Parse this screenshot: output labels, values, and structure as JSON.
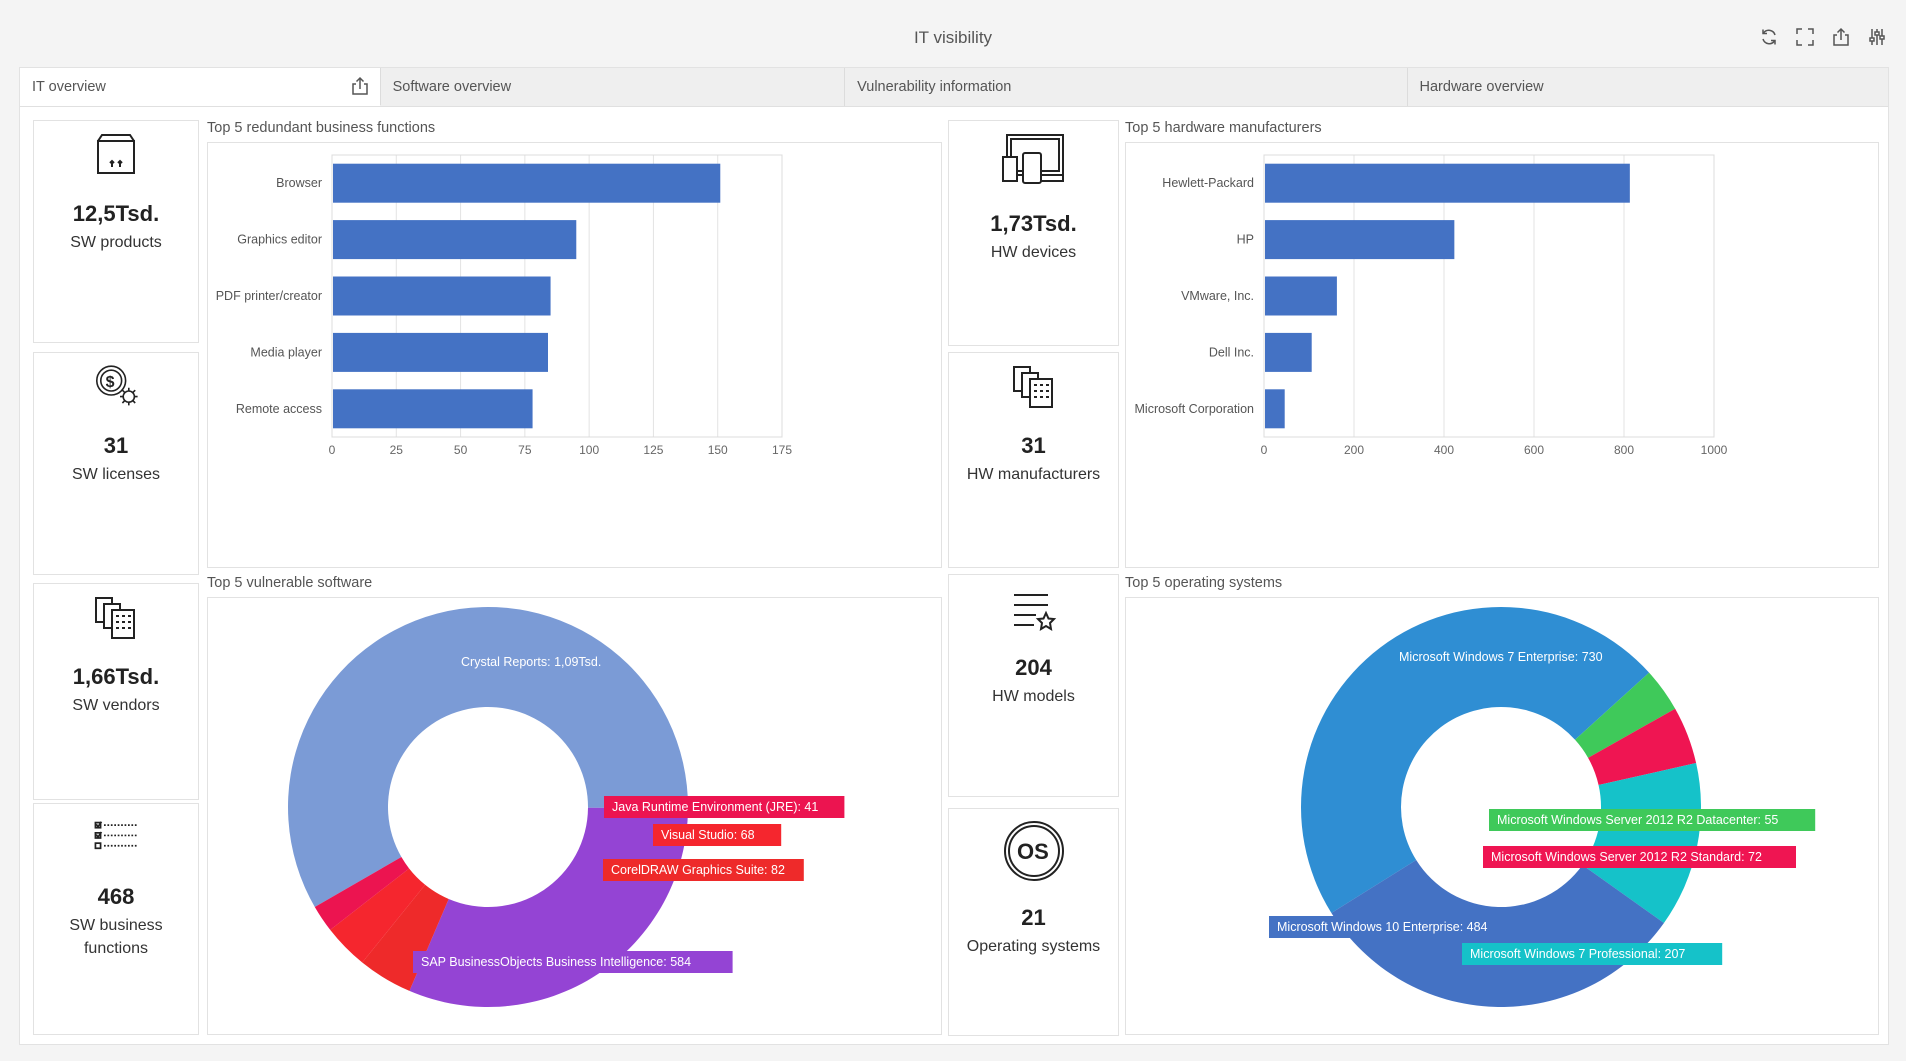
{
  "app": {
    "title": "IT visibility"
  },
  "toolbar": {
    "icons": [
      "refresh-icon",
      "fullscreen-icon",
      "share-icon",
      "settings-sliders-icon"
    ]
  },
  "tabs": [
    {
      "label": "IT overview",
      "active": true
    },
    {
      "label": "Software overview",
      "active": false
    },
    {
      "label": "Vulnerability information",
      "active": false
    },
    {
      "label": "Hardware overview",
      "active": false
    }
  ],
  "kpis": {
    "sw_products": {
      "value": "12,5Tsd.",
      "label": "SW products",
      "icon": "box-icon"
    },
    "sw_licenses": {
      "value": "31",
      "label": "SW licenses",
      "icon": "dollar-gear-icon"
    },
    "sw_vendors": {
      "value": "1,66Tsd.",
      "label": "SW vendors",
      "icon": "building-icon"
    },
    "sw_business_functions": {
      "value": "468",
      "label": "SW business functions",
      "icon": "checklist-icon"
    },
    "hw_devices": {
      "value": "1,73Tsd.",
      "label": "HW devices",
      "icon": "devices-icon"
    },
    "hw_manufacturers": {
      "value": "31",
      "label": "HW manufacturers",
      "icon": "building-icon"
    },
    "hw_models": {
      "value": "204",
      "label": "HW models",
      "icon": "list-star-icon"
    },
    "operating_systems": {
      "value": "21",
      "label": "Operating systems",
      "icon": "os-icon"
    }
  },
  "panels": {
    "redundant": {
      "title": "Top 5 redundant business functions"
    },
    "hw_manufacturers": {
      "title": "Top 5 hardware manufacturers"
    },
    "vulnerable": {
      "title": "Top 5 vulnerable software"
    },
    "os": {
      "title": "Top 5 operating systems"
    }
  },
  "chart_data": [
    {
      "type": "bar",
      "orientation": "horizontal",
      "title": "Top 5 redundant business functions",
      "categories": [
        "Browser",
        "Graphics editor",
        "PDF printer/creator",
        "Media player",
        "Remote access"
      ],
      "values": [
        151,
        95,
        85,
        84,
        78
      ],
      "xlim": [
        0,
        175
      ],
      "xticks": [
        0,
        25,
        50,
        75,
        100,
        125,
        150,
        175
      ],
      "grid": true,
      "color": "#4472c4"
    },
    {
      "type": "bar",
      "orientation": "horizontal",
      "title": "Top 5 hardware manufacturers",
      "categories": [
        "Hewlett-Packard",
        "HP",
        "VMware, Inc.",
        "Dell Inc.",
        "Microsoft Corporation"
      ],
      "values": [
        813,
        423,
        162,
        106,
        46
      ],
      "xlim": [
        0,
        1000
      ],
      "xticks": [
        0,
        200,
        400,
        600,
        800,
        1000
      ],
      "grid": true,
      "color": "#4472c4"
    },
    {
      "type": "pie",
      "donut": true,
      "title": "Top 5 vulnerable software",
      "slices": [
        {
          "label": "Crystal Reports: 1,09Tsd.",
          "value": 1090,
          "color": "#7b9bd6"
        },
        {
          "label": "SAP BusinessObjects Business Intelligence: 584",
          "value": 584,
          "color": "#9444d4"
        },
        {
          "label": "CorelDRAW Graphics Suite: 82",
          "value": 82,
          "color": "#ee2a2a"
        },
        {
          "label": "Visual Studio: 68",
          "value": 68,
          "color": "#f5262e"
        },
        {
          "label": "Java Runtime Environment (JRE): 41",
          "value": 41,
          "color": "#ec1450"
        }
      ]
    },
    {
      "type": "pie",
      "donut": true,
      "title": "Top 5 operating systems",
      "slices": [
        {
          "label": "Microsoft Windows 7 Enterprise: 730",
          "value": 730,
          "color": "#2f8ed3"
        },
        {
          "label": "Microsoft Windows Server 2012 R2 Datacenter: 55",
          "value": 55,
          "color": "#3fc95a"
        },
        {
          "label": "Microsoft Windows Server 2012 R2 Standard: 72",
          "value": 72,
          "color": "#ef1552"
        },
        {
          "label": "Microsoft Windows 7 Professional: 207",
          "value": 207,
          "color": "#15c2c9"
        },
        {
          "label": "Microsoft Windows 10 Enterprise: 484",
          "value": 484,
          "color": "#4472c4"
        }
      ]
    }
  ]
}
